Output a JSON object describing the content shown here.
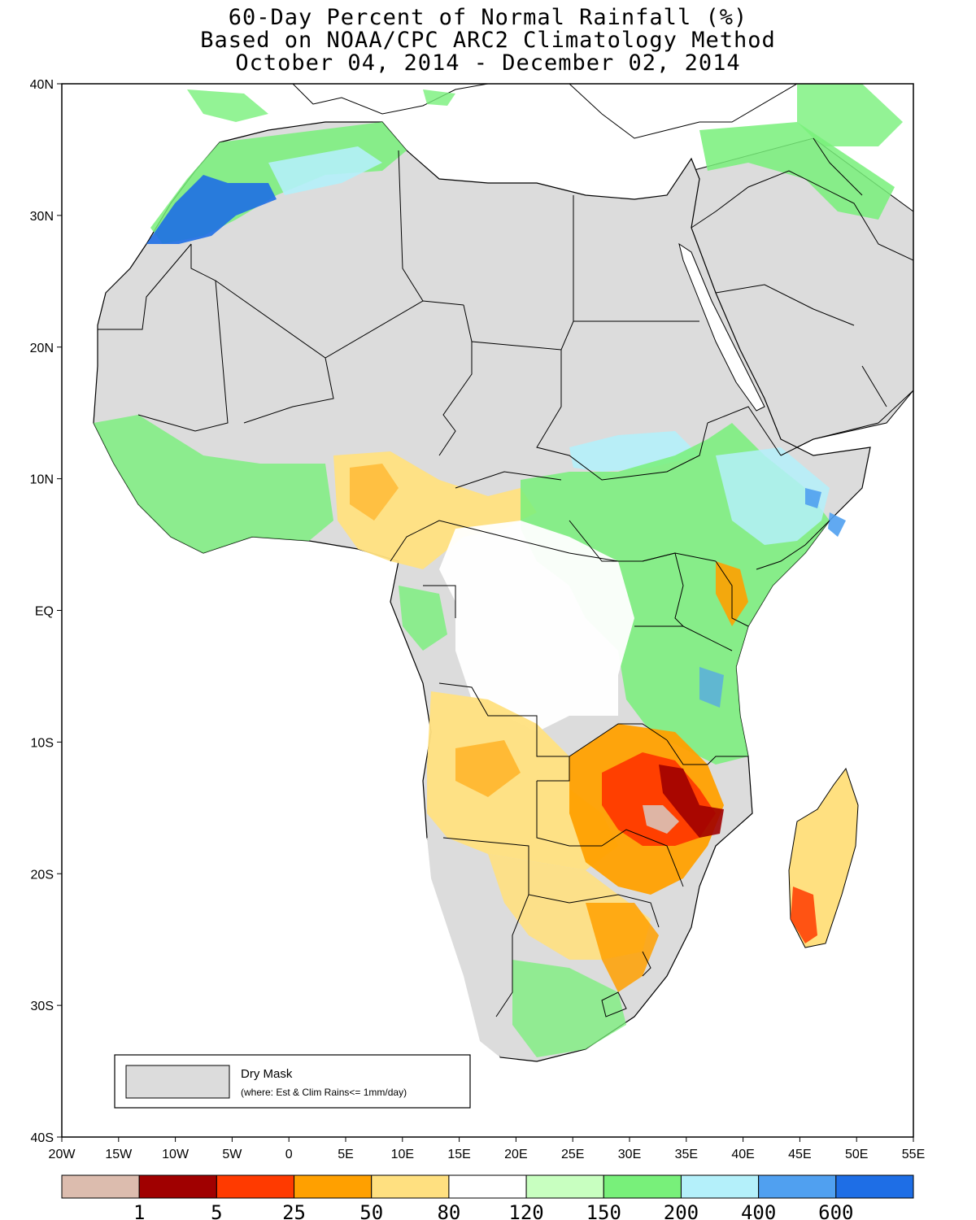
{
  "title": {
    "line1": "60-Day Percent of Normal Rainfall (%)",
    "line2": "Based on NOAA/CPC ARC2 Climatology Method",
    "line3": "October 04, 2014 - December 02, 2014"
  },
  "axes": {
    "lat_labels": [
      "40N",
      "30N",
      "20N",
      "10N",
      "EQ",
      "10S",
      "20S",
      "30S",
      "40S"
    ],
    "lon_labels": [
      "20W",
      "15W",
      "10W",
      "5W",
      "0",
      "5E",
      "10E",
      "15E",
      "20E",
      "25E",
      "30E",
      "35E",
      "40E",
      "45E",
      "50E",
      "55E"
    ]
  },
  "legend_box": {
    "label": "Dry Mask",
    "note": "(where: Est & Clim Rains<= 1mm/day)",
    "swatch_color": "#dcdcdc"
  },
  "colorbar": {
    "colors": [
      "#dcbcae",
      "#a00000",
      "#ff3a00",
      "#ffa000",
      "#ffe080",
      "#ffffff",
      "#c8ffc0",
      "#78f07a",
      "#b4f0fa",
      "#50a0f0",
      "#1e6ee6"
    ],
    "labels": [
      "1",
      "5",
      "25",
      "50",
      "80",
      "120",
      "150",
      "200",
      "400",
      "600"
    ]
  },
  "colors": {
    "land_dry": "#dcdcdc",
    "border": "#000000"
  }
}
